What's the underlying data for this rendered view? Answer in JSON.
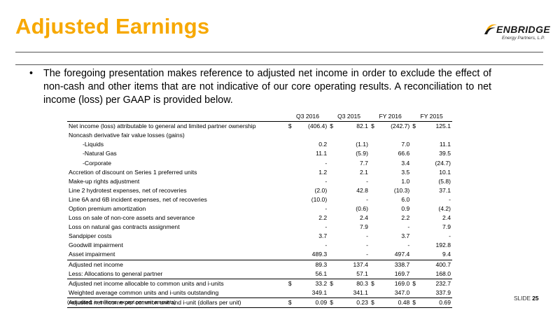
{
  "title": "Adjusted Earnings",
  "logo": {
    "wordmark": "ENBRIDGE",
    "subtitle": "Energy Partners, L.P.",
    "brand_color": "#1a1a1a"
  },
  "accent_color": "#f7a800",
  "bullet": "The foregoing presentation makes reference to adjusted net income in order to exclude the effect of non-cash and other items that are not indicative of our core operating results.  A reconciliation to net income (loss) per GAAP is provided below.",
  "table": {
    "columns": [
      "Q3 2016",
      "Q3 2015",
      "FY 2016",
      "FY 2015"
    ],
    "rows": [
      {
        "label": "Net income (loss) attributable to general and limited partner ownership",
        "dollar": true,
        "values": [
          "(406.4)",
          "82.1",
          "(242.7)",
          "125.1"
        ]
      },
      {
        "label": "Noncash derivative fair value losses (gains)",
        "values": [
          "",
          "",
          "",
          ""
        ]
      },
      {
        "label": "-Liquids",
        "indent": true,
        "values": [
          "0.2",
          "(1.1)",
          "7.0",
          "11.1"
        ]
      },
      {
        "label": "-Natural Gas",
        "indent": true,
        "values": [
          "11.1",
          "(5.9)",
          "66.6",
          "39.5"
        ]
      },
      {
        "label": "-Corporate",
        "indent": true,
        "values": [
          "-",
          "7.7",
          "3.4",
          "(24.7)"
        ]
      },
      {
        "label": "Accretion of discount on Series 1 preferred units",
        "values": [
          "1.2",
          "2.1",
          "3.5",
          "10.1"
        ]
      },
      {
        "label": "Make-up rights adjustment",
        "values": [
          "-",
          "-",
          "1.0",
          "(5.8)"
        ]
      },
      {
        "label": "Line 2 hydrotest expenses, net of recoveries",
        "values": [
          "(2.0)",
          "42.8",
          "(10.3)",
          "37.1"
        ]
      },
      {
        "label": "Line 6A and 6B incident expenses, net of recoveries",
        "values": [
          "(10.0)",
          "-",
          "6.0",
          "-"
        ]
      },
      {
        "label": "Option premium amortization",
        "values": [
          "-",
          "(0.6)",
          "0.9",
          "(4.2)"
        ]
      },
      {
        "label": "Loss on sale of non-core assets and severance",
        "values": [
          "2.2",
          "2.4",
          "2.2",
          "2.4"
        ]
      },
      {
        "label": "Loss on natural gas contracts assignment",
        "values": [
          "-",
          "7.9",
          "-",
          "7.9"
        ]
      },
      {
        "label": "Sandpiper costs",
        "values": [
          "3.7",
          "-",
          "3.7",
          "-"
        ]
      },
      {
        "label": "Goodwill impairment",
        "values": [
          "-",
          "-",
          "-",
          "192.8"
        ]
      },
      {
        "label": "Asset impairment",
        "values": [
          "489.3",
          "-",
          "497.4",
          "9.4"
        ]
      },
      {
        "label": "Adjusted net income",
        "values": [
          "89.3",
          "137.4",
          "338.7",
          "400.7"
        ]
      },
      {
        "label": "Less: Allocations to general partner",
        "values": [
          "56.1",
          "57.1",
          "169.7",
          "168.0"
        ]
      },
      {
        "label": "Adjusted net income allocable to common units and i-units",
        "dollar": true,
        "values": [
          "33.2",
          "80.3",
          "169.0",
          "232.7"
        ]
      },
      {
        "label": "Weighted average common units and i-units outstanding",
        "values": [
          "349.1",
          "341.1",
          "347.0",
          "337.9"
        ]
      },
      {
        "label": "Adjusted net income per common unit and i-unit (dollars per unit)",
        "dollar": true,
        "values": [
          "0.09",
          "0.23",
          "0.48",
          "0.69"
        ]
      }
    ]
  },
  "footnote": "(unaudited; in millions, except per unit amounts)",
  "slide": {
    "prefix": "SLIDE",
    "number": "25"
  }
}
